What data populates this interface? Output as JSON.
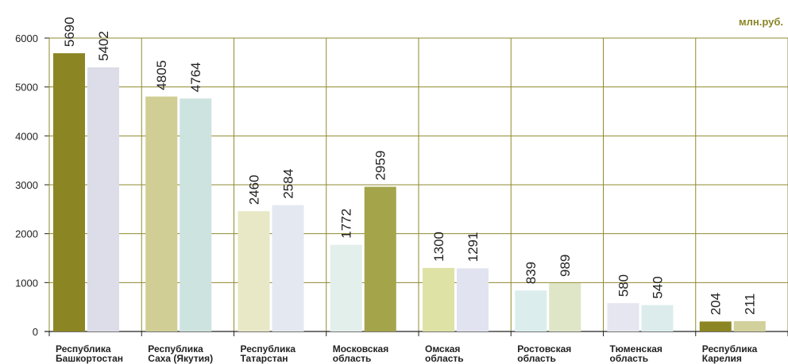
{
  "unit_label": "млн.руб.",
  "chart_data": {
    "type": "bar",
    "title": "",
    "xlabel": "",
    "ylabel": "",
    "ylim": [
      0,
      6000
    ],
    "yticks": [
      0,
      1000,
      2000,
      3000,
      4000,
      5000,
      6000
    ],
    "grid": true,
    "legend": "none",
    "categories": [
      [
        "Республика",
        "Башкортостан"
      ],
      [
        "Республика",
        "Саха (Якутия)"
      ],
      [
        "Республика",
        "Татарстан"
      ],
      [
        "Московская",
        "область"
      ],
      [
        "Омская",
        "область"
      ],
      [
        "Ростовская",
        "область"
      ],
      [
        "Тюменская",
        "область"
      ],
      [
        "Республика",
        "Карелия"
      ]
    ],
    "series": [
      {
        "values": [
          5690,
          4805,
          2460,
          1772,
          1300,
          839,
          580,
          204
        ]
      },
      {
        "values": [
          5402,
          4764,
          2584,
          2959,
          1291,
          989,
          540,
          211
        ]
      }
    ],
    "bar_colors": [
      [
        "#8c8523",
        "#dddde9"
      ],
      [
        "#d0ce94",
        "#cde3df"
      ],
      [
        "#e8e8c6",
        "#e4e9f1"
      ],
      [
        "#e3efea",
        "#a4a44a"
      ],
      [
        "#dfe2a5",
        "#e2e3f0"
      ],
      [
        "#dbeeed",
        "#dee6c7"
      ],
      [
        "#e6e6f0",
        "#dcecec"
      ],
      [
        "#8c8523",
        "#d2d09b"
      ]
    ],
    "colors": {
      "grid": "#8f8a2e",
      "axis": "#222222",
      "text": "#222222",
      "unit": "#8a8526"
    }
  }
}
